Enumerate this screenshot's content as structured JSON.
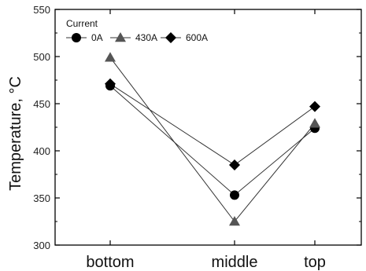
{
  "chart_data": {
    "type": "line",
    "categories": [
      "bottom",
      "middle",
      "top"
    ],
    "ylabel": "Temperature, °C",
    "xlabel": "",
    "ylim": [
      300,
      550
    ],
    "yticks": [
      300,
      350,
      400,
      450,
      500,
      550
    ],
    "grid": false,
    "legend": {
      "title": "Current",
      "placement": "top-left"
    },
    "series": [
      {
        "name": "0A",
        "marker": "circle",
        "color": "#000000",
        "values": [
          469,
          353,
          424
        ]
      },
      {
        "name": "430A",
        "marker": "triangle",
        "color": "#555555",
        "values": [
          499,
          325,
          429
        ]
      },
      {
        "name": "600A",
        "marker": "diamond",
        "color": "#000000",
        "values": [
          471,
          385,
          447
        ]
      }
    ]
  }
}
